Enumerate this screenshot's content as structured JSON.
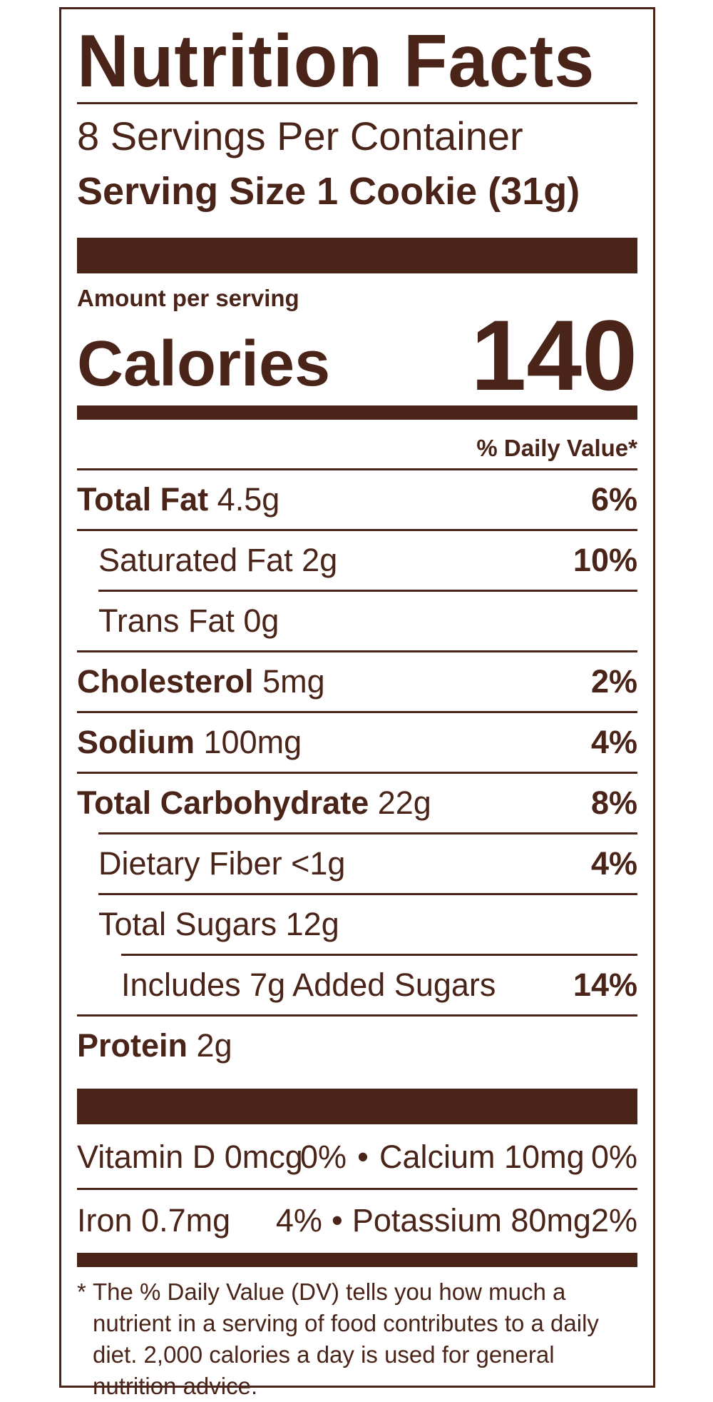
{
  "title": "Nutrition Facts",
  "servings_per_container": "8 Servings Per Container",
  "serving_size": "Serving Size 1 Cookie (31g)",
  "amount_per_serving": "Amount per serving",
  "calories_label": "Calories",
  "calories_value": "140",
  "daily_value_header": "% Daily Value*",
  "nutrients": [
    {
      "name": "Total Fat",
      "amount": "4.5g",
      "dv": "6%"
    },
    {
      "name": "Saturated Fat 2g",
      "amount": "",
      "dv": "10%"
    },
    {
      "name": "Trans Fat 0g",
      "amount": "",
      "dv": ""
    },
    {
      "name": "Cholesterol",
      "amount": "5mg",
      "dv": "2%"
    },
    {
      "name": "Sodium",
      "amount": "100mg",
      "dv": "4%"
    },
    {
      "name": "Total Carbohydrate",
      "amount": "22g",
      "dv": "8%"
    },
    {
      "name": "Dietary Fiber <1g",
      "amount": "",
      "dv": "4%"
    },
    {
      "name": "Total Sugars 12g",
      "amount": "",
      "dv": ""
    },
    {
      "name": "Includes 7g Added Sugars",
      "amount": "",
      "dv": "14%"
    },
    {
      "name": "Protein",
      "amount": "2g",
      "dv": ""
    }
  ],
  "vitamins": [
    {
      "name1": "Vitamin D 0mcg",
      "dv1": "0%",
      "separator": "•",
      "name2": "Calcium 10mg",
      "dv2": "0%"
    },
    {
      "name1": "Iron 0.7mg",
      "dv1": "4%",
      "separator": "•",
      "name2": "Potassium 80mg",
      "dv2": "2%"
    }
  ],
  "footnote_star": "*",
  "footnote": "The % Daily Value (DV) tells you how much a nutrient in a serving of food contributes to a daily diet. 2,000 calories a day is used for general nutrition advice.",
  "colors": {
    "ink": "#4a2418",
    "background": "#ffffff"
  }
}
